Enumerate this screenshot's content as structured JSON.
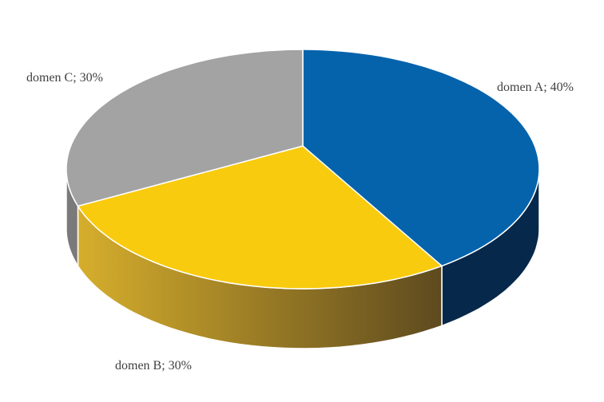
{
  "chart_data": {
    "type": "pie",
    "style": "3d",
    "title": "",
    "slices": [
      {
        "label": "domen A",
        "value": 40,
        "text": "domen A; 40%",
        "color": "#0563ac",
        "side_color": "#06284a",
        "side_color_end": "#06284a"
      },
      {
        "label": "domen B",
        "value": 30,
        "text": "domen B; 30%",
        "color": "#f8cb0e",
        "side_color": "#d6ae2c",
        "side_color_end": "#5e4a1f"
      },
      {
        "label": "domen C",
        "value": 30,
        "text": "domen C; 30%",
        "color": "#a3a3a3",
        "side_color": "#7a7a7a",
        "side_color_end": "#7a7a7a"
      }
    ],
    "start_angle_deg": 0,
    "direction": "clockwise",
    "legend": "none"
  }
}
